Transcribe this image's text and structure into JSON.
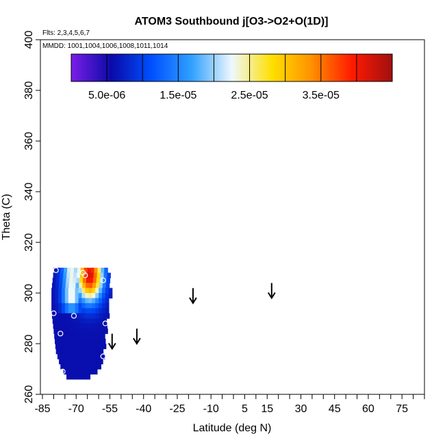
{
  "chart_data": {
    "type": "heatmap",
    "title": "ATOM3 Southbound j[O3->O2+O(1D)]",
    "flights_note": "Flts: 2,3,4,5,6,7",
    "dates_note": "MMDD: 1001,1004,1006,1008,1011,1014",
    "xlabel": "Latitude (deg N)",
    "ylabel": "Theta (C)",
    "xlim": [
      -85,
      85
    ],
    "ylim": [
      260,
      400
    ],
    "x_tick_labels": [
      "-85",
      "-70",
      "-55",
      "-40",
      "-25",
      "-10",
      "5",
      "15",
      "30",
      "45",
      "60",
      "75"
    ],
    "x_tick_values": [
      -85,
      -70,
      -55,
      -40,
      -25,
      -10,
      5,
      15,
      30,
      45,
      60,
      75
    ],
    "x_minor_ticks": [
      -80,
      -75,
      -65,
      -60,
      -50,
      -45,
      -35,
      -30,
      -20,
      -15,
      -5,
      0,
      10,
      20,
      25,
      35,
      40,
      50,
      55,
      65,
      70,
      80,
      85
    ],
    "y_ticks": [
      260,
      280,
      300,
      320,
      340,
      360,
      380,
      400
    ],
    "colorbar": {
      "min": 0,
      "max": 4.5e-05,
      "tick_labels": [
        "5.0e-06",
        "1.5e-05",
        "2.5e-05",
        "3.5e-05"
      ],
      "tick_values": [
        5e-06,
        1.5e-05,
        2.5e-05,
        3.5e-05
      ],
      "bin_edges": [
        0,
        5e-06,
        1e-05,
        1.5e-05,
        2e-05,
        2.5e-05,
        3e-05,
        3.5e-05,
        4e-05,
        4.5e-05
      ],
      "colors": [
        "#7a1ee8",
        "#0a0aa8",
        "#0050ff",
        "#30a0ff",
        "#eef8ff",
        "#ffe000",
        "#ff9000",
        "#ff1a00",
        "#a01010"
      ]
    },
    "arrows": [
      {
        "lat": -54,
        "theta": 278
      },
      {
        "lat": -43,
        "theta": 280
      },
      {
        "lat": -18,
        "theta": 296
      },
      {
        "lat": 17,
        "theta": 298
      }
    ],
    "field": {
      "theta_top": 310,
      "theta_bottom": 266,
      "profile": [
        {
          "theta": 310,
          "west": -80,
          "east": -56
        },
        {
          "theta": 302,
          "west": -81,
          "east": -55
        },
        {
          "theta": 294,
          "west": -81,
          "east": -56
        },
        {
          "theta": 286,
          "west": -80,
          "east": -57
        },
        {
          "theta": 278,
          "west": -79,
          "east": -58
        },
        {
          "theta": 272,
          "west": -77,
          "east": -60
        },
        {
          "theta": 266,
          "west": -73,
          "east": -66
        }
      ],
      "high_core": {
        "lat": -64,
        "theta": 307,
        "value": 4.2e-05
      },
      "high_arm_lat": -72,
      "arm_bottom_theta": 292,
      "low_value": 6e-06
    },
    "samples": [
      {
        "lat": -79,
        "theta": 309
      },
      {
        "lat": -67,
        "theta": 308
      },
      {
        "lat": -66,
        "theta": 307
      },
      {
        "lat": -64,
        "theta": 311
      },
      {
        "lat": -80,
        "theta": 292
      },
      {
        "lat": -58,
        "theta": 305
      },
      {
        "lat": -71,
        "theta": 291
      },
      {
        "lat": -57,
        "theta": 288
      },
      {
        "lat": -77,
        "theta": 284
      },
      {
        "lat": -58,
        "theta": 275
      },
      {
        "lat": -76,
        "theta": 269
      }
    ]
  }
}
